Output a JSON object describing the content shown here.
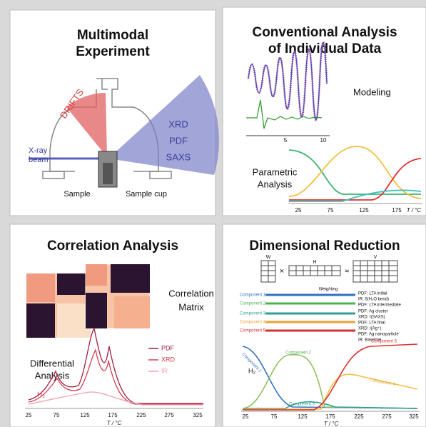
{
  "panels": [
    {
      "title": [
        "Multimodal",
        "Experiment"
      ],
      "drifts": "DRIFTS",
      "methods": [
        "XRD",
        "PDF",
        "SAXS"
      ],
      "beam": [
        "X-ray",
        "beam"
      ],
      "sample": "Sample",
      "cup": "Sample cup"
    },
    {
      "title": [
        "Conventional Analysis",
        "of Individual Data"
      ],
      "modeling": "Modeling",
      "parametric": [
        "Parametric",
        "Analysis"
      ],
      "inset_ticks": [
        5,
        10
      ],
      "xticks": [
        25,
        75,
        125,
        175
      ],
      "xlabel": "T / °C"
    },
    {
      "title": "Correlation Analysis",
      "matrix": [
        "Correlation",
        "Matrix"
      ],
      "differential": [
        "Differential",
        "Analysis"
      ],
      "gas": "H₂",
      "legend": [
        "PDF",
        "XRD",
        "IR"
      ],
      "xticks": [
        25,
        75,
        125,
        175,
        225,
        275,
        325
      ],
      "xlabel": "T / °C"
    },
    {
      "title": "Dimensional Reduction",
      "matrices": [
        "W",
        "×",
        "H",
        "≈",
        "V"
      ],
      "weighting": "Weighting",
      "components": [
        "Component 1",
        "Component 2",
        "Component 3",
        "Component 4",
        "Component 5"
      ],
      "assignments": [
        "PDF: LTA initial",
        "IR: δ(H₂O bend)",
        "PDF: LTA intermediate",
        "PDF: Ag cluster",
        "XRD: I(SAXS)",
        "PDF: LTA final",
        "XRD: I(Ag⁺)",
        "PDF: Ag nanoparticle",
        "IR: Baseline"
      ],
      "gas": "H₂",
      "xticks": [
        25,
        75,
        125,
        175,
        225,
        275,
        325
      ],
      "xlabel": "T / °C"
    }
  ]
}
